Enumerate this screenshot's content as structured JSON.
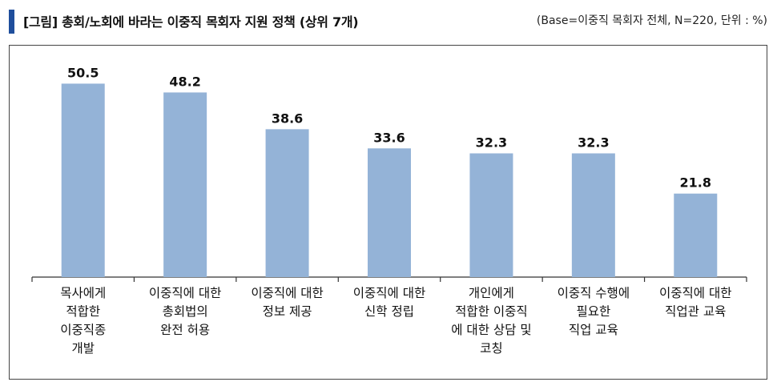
{
  "header": {
    "title": "[그림] 총회/노회에 바라는 이중직 목회자 지원 정책 (상위 7개)",
    "base_note": "(Base=이중직 목회자 전체, N=220, 단위 : %)",
    "accent_color": "#1f4e9c"
  },
  "chart_data": {
    "type": "bar",
    "title": "[그림] 총회/노회에 바라는 이중직 목회자 지원 정책 (상위 7개)",
    "categories": [
      [
        "목사에게",
        "적합한",
        "이중직종",
        "개발"
      ],
      [
        "이중직에 대한",
        "총회법의",
        "완전 허용"
      ],
      [
        "이중직에 대한",
        "정보 제공"
      ],
      [
        "이중직에 대한",
        "신학 정립"
      ],
      [
        "개인에게",
        "적합한 이중직",
        "에 대한 상담 및",
        "코칭"
      ],
      [
        "이중직 수행에",
        "필요한",
        "직업 교육"
      ],
      [
        "이중직에 대한",
        "직업관 교육"
      ]
    ],
    "values": [
      50.5,
      48.2,
      38.6,
      33.6,
      32.3,
      32.3,
      21.8
    ],
    "value_labels": [
      "50.5",
      "48.2",
      "38.6",
      "33.6",
      "32.3",
      "32.3",
      "21.8"
    ],
    "ylim": [
      0,
      60
    ],
    "grid": false,
    "bar_color": "#94b3d7",
    "xlabel": "",
    "ylabel": ""
  }
}
